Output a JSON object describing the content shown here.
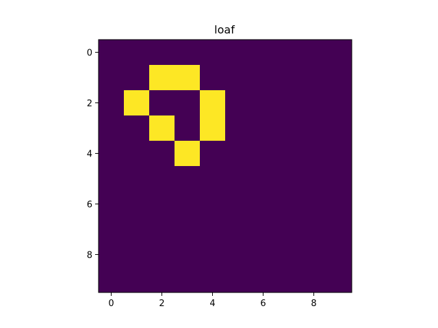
{
  "chart_data": {
    "type": "heatmap",
    "title": "loaf",
    "xlabel": "",
    "ylabel": "",
    "rows": 10,
    "cols": 10,
    "xlim": [
      -0.5,
      9.5
    ],
    "ylim": [
      9.5,
      -0.5
    ],
    "xticks": [
      0,
      2,
      4,
      6,
      8
    ],
    "yticks": [
      0,
      2,
      4,
      6,
      8
    ],
    "grid": false,
    "colormap": {
      "0": "#440154",
      "1": "#fde725"
    },
    "values": [
      [
        0,
        0,
        0,
        0,
        0,
        0,
        0,
        0,
        0,
        0
      ],
      [
        0,
        0,
        1,
        1,
        0,
        0,
        0,
        0,
        0,
        0
      ],
      [
        0,
        1,
        0,
        0,
        1,
        0,
        0,
        0,
        0,
        0
      ],
      [
        0,
        0,
        1,
        0,
        1,
        0,
        0,
        0,
        0,
        0
      ],
      [
        0,
        0,
        0,
        1,
        0,
        0,
        0,
        0,
        0,
        0
      ],
      [
        0,
        0,
        0,
        0,
        0,
        0,
        0,
        0,
        0,
        0
      ],
      [
        0,
        0,
        0,
        0,
        0,
        0,
        0,
        0,
        0,
        0
      ],
      [
        0,
        0,
        0,
        0,
        0,
        0,
        0,
        0,
        0,
        0
      ],
      [
        0,
        0,
        0,
        0,
        0,
        0,
        0,
        0,
        0,
        0
      ],
      [
        0,
        0,
        0,
        0,
        0,
        0,
        0,
        0,
        0,
        0
      ]
    ]
  }
}
